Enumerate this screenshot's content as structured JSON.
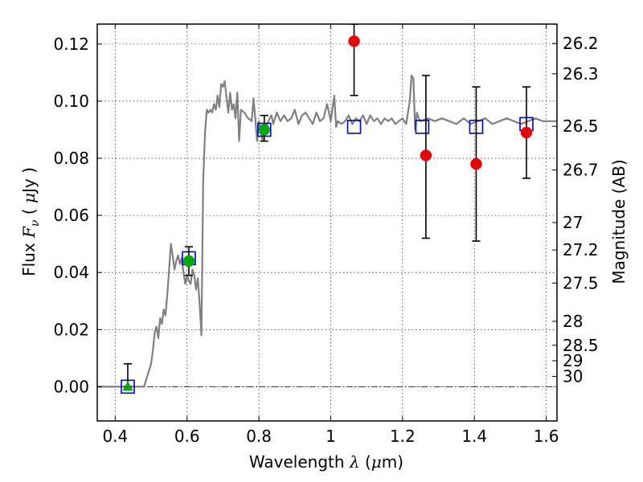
{
  "chart_data": {
    "type": "scatter",
    "xlabel": {
      "prefix": "Wavelength",
      "symbol": "λ",
      "unit_open": " (",
      "unit_mu": "μ",
      "unit_rest": "m)"
    },
    "ylabel": {
      "prefix": "Flux",
      "symbol": "F",
      "subscript": "ν",
      "unit_open": " ( ",
      "unit_mu": "μ",
      "unit_rest": "Jy )"
    },
    "y2label": "Magnitude (AB)",
    "xlim": [
      0.35,
      1.63
    ],
    "ylim": [
      -0.012,
      0.127
    ],
    "grid": true,
    "x_ticks": [
      {
        "value": 0.4,
        "label": "0.4"
      },
      {
        "value": 0.6,
        "label": "0.6"
      },
      {
        "value": 0.8,
        "label": "0.8"
      },
      {
        "value": 1.0,
        "label": "1"
      },
      {
        "value": 1.2,
        "label": "1.2"
      },
      {
        "value": 1.4,
        "label": "1.4"
      },
      {
        "value": 1.6,
        "label": "1.6"
      }
    ],
    "y_ticks": [
      {
        "value": 0.0,
        "label": "0.00"
      },
      {
        "value": 0.02,
        "label": "0.02"
      },
      {
        "value": 0.04,
        "label": "0.04"
      },
      {
        "value": 0.06,
        "label": "0.06"
      },
      {
        "value": 0.08,
        "label": "0.08"
      },
      {
        "value": 0.1,
        "label": "0.10"
      },
      {
        "value": 0.12,
        "label": "0.12"
      }
    ],
    "mag_ticks": [
      {
        "label": "26.2",
        "flux": 0.1202
      },
      {
        "label": "26.3",
        "flux": 0.1096
      },
      {
        "label": "26.5",
        "flux": 0.0912
      },
      {
        "label": "26.7",
        "flux": 0.0759
      },
      {
        "label": "27",
        "flux": 0.0575
      },
      {
        "label": "27.2",
        "flux": 0.0479
      },
      {
        "label": "27.5",
        "flux": 0.0363
      },
      {
        "label": "28",
        "flux": 0.0229
      },
      {
        "label": "28.5",
        "flux": 0.0145
      },
      {
        "label": "29",
        "flux": 0.0091
      },
      {
        "label": "30",
        "flux": 0.0036
      }
    ],
    "zero_line": 0.0,
    "series": [
      {
        "name": "model-spectrum",
        "kind": "line",
        "color": "#808080",
        "x": [
          0.35,
          0.48,
          0.49,
          0.5,
          0.505,
          0.51,
          0.515,
          0.52,
          0.525,
          0.53,
          0.535,
          0.54,
          0.545,
          0.55,
          0.555,
          0.56,
          0.565,
          0.57,
          0.575,
          0.58,
          0.585,
          0.59,
          0.595,
          0.6,
          0.605,
          0.61,
          0.615,
          0.62,
          0.625,
          0.63,
          0.635,
          0.64,
          0.645,
          0.65,
          0.655,
          0.66,
          0.665,
          0.67,
          0.675,
          0.68,
          0.685,
          0.69,
          0.695,
          0.7,
          0.705,
          0.71,
          0.715,
          0.72,
          0.725,
          0.73,
          0.735,
          0.74,
          0.745,
          0.75,
          0.76,
          0.77,
          0.78,
          0.785,
          0.79,
          0.795,
          0.8,
          0.81,
          0.82,
          0.83,
          0.835,
          0.84,
          0.85,
          0.86,
          0.87,
          0.88,
          0.89,
          0.9,
          0.91,
          0.92,
          0.93,
          0.94,
          0.95,
          0.96,
          0.97,
          0.98,
          0.99,
          1.0,
          1.01,
          1.015,
          1.02,
          1.03,
          1.04,
          1.05,
          1.06,
          1.07,
          1.08,
          1.09,
          1.1,
          1.11,
          1.12,
          1.13,
          1.14,
          1.15,
          1.16,
          1.17,
          1.18,
          1.19,
          1.2,
          1.21,
          1.22,
          1.225,
          1.23,
          1.235,
          1.24,
          1.245,
          1.25,
          1.27,
          1.29,
          1.31,
          1.33,
          1.35,
          1.37,
          1.39,
          1.41,
          1.43,
          1.45,
          1.47,
          1.49,
          1.51,
          1.53,
          1.55,
          1.57,
          1.59,
          1.63
        ],
        "y": [
          0.0,
          0.0,
          0.004,
          0.008,
          0.013,
          0.019,
          0.021,
          0.017,
          0.024,
          0.022,
          0.027,
          0.025,
          0.032,
          0.041,
          0.05,
          0.046,
          0.041,
          0.044,
          0.046,
          0.043,
          0.045,
          0.04,
          0.036,
          0.039,
          0.037,
          0.036,
          0.041,
          0.039,
          0.034,
          0.038,
          0.029,
          0.018,
          0.072,
          0.089,
          0.097,
          0.096,
          0.097,
          0.096,
          0.099,
          0.097,
          0.102,
          0.098,
          0.106,
          0.105,
          0.107,
          0.101,
          0.096,
          0.103,
          0.097,
          0.099,
          0.094,
          0.103,
          0.086,
          0.097,
          0.096,
          0.094,
          0.093,
          0.101,
          0.094,
          0.086,
          0.093,
          0.086,
          0.091,
          0.094,
          0.095,
          0.092,
          0.096,
          0.093,
          0.095,
          0.093,
          0.094,
          0.097,
          0.092,
          0.095,
          0.096,
          0.094,
          0.092,
          0.096,
          0.093,
          0.094,
          0.099,
          0.093,
          0.102,
          0.091,
          0.093,
          0.092,
          0.093,
          0.095,
          0.092,
          0.094,
          0.093,
          0.095,
          0.092,
          0.095,
          0.093,
          0.094,
          0.092,
          0.094,
          0.093,
          0.094,
          0.092,
          0.093,
          0.094,
          0.092,
          0.1,
          0.109,
          0.108,
          0.09,
          0.096,
          0.094,
          0.093,
          0.094,
          0.093,
          0.094,
          0.093,
          0.092,
          0.094,
          0.092,
          0.093,
          0.094,
          0.092,
          0.093,
          0.094,
          0.093,
          0.092,
          0.093,
          0.094,
          0.093,
          0.093
        ]
      },
      {
        "name": "model-photometry",
        "kind": "open-square",
        "color": "#0000cc",
        "x": [
          0.435,
          0.605,
          0.815,
          1.065,
          1.255,
          1.405,
          1.545
        ],
        "y": [
          0.0,
          0.045,
          0.09,
          0.091,
          0.091,
          0.091,
          0.092
        ]
      },
      {
        "name": "detections-optical",
        "kind": "filled-circle",
        "color": "#00aa00",
        "x": [
          0.605,
          0.815
        ],
        "y": [
          0.044,
          0.09
        ]
      },
      {
        "name": "upper-limit-optical",
        "kind": "filled-triangle",
        "color": "#00aa00",
        "x": [
          0.435
        ],
        "y": [
          0.0
        ]
      },
      {
        "name": "detections-nir",
        "kind": "filled-circle",
        "color": "#ee0000",
        "x": [
          1.065,
          1.265,
          1.405,
          1.545
        ],
        "y": [
          0.121,
          0.081,
          0.078,
          0.089
        ]
      }
    ],
    "error_bars": [
      {
        "x": 0.435,
        "low": 0.0,
        "high": 0.008
      },
      {
        "x": 0.605,
        "low": 0.039,
        "high": 0.049
      },
      {
        "x": 0.815,
        "low": 0.086,
        "high": 0.095
      },
      {
        "x": 1.065,
        "low": 0.102,
        "high": 0.127
      },
      {
        "x": 1.265,
        "low": 0.052,
        "high": 0.109
      },
      {
        "x": 1.405,
        "low": 0.051,
        "high": 0.105
      },
      {
        "x": 1.545,
        "low": 0.073,
        "high": 0.105
      }
    ]
  }
}
